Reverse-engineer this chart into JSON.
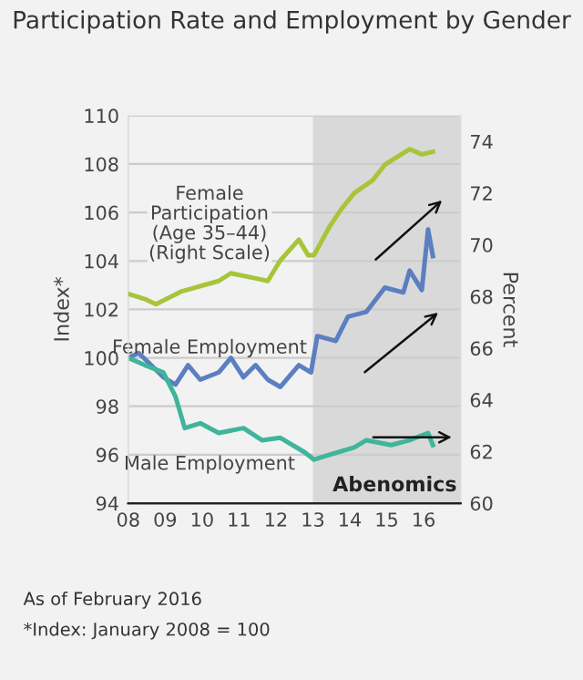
{
  "chart_data": {
    "type": "line",
    "title": "Participation Rate and Employment by Gender",
    "ylabel": "Index*",
    "y2label": "Percent",
    "xlim": [
      2008,
      2017
    ],
    "xticks": [
      {
        "value": 2008,
        "label": "08"
      },
      {
        "value": 2009,
        "label": "09"
      },
      {
        "value": 2010,
        "label": "10"
      },
      {
        "value": 2011,
        "label": "11"
      },
      {
        "value": 2012,
        "label": "12"
      },
      {
        "value": 2013,
        "label": "13"
      },
      {
        "value": 2014,
        "label": "14"
      },
      {
        "value": 2015,
        "label": "15"
      },
      {
        "value": 2016,
        "label": "16"
      }
    ],
    "ylim": [
      94,
      110
    ],
    "yticks": [
      94,
      96,
      98,
      100,
      102,
      104,
      106,
      108,
      110
    ],
    "y2lim": [
      60,
      75
    ],
    "y2ticks": [
      60,
      62,
      64,
      66,
      68,
      70,
      72,
      74
    ],
    "grid": "y",
    "legend": false,
    "marker": "none",
    "line_style": "solid",
    "bands": [
      {
        "axis": "x",
        "from": 2013,
        "to": 2017,
        "label": "Abenomics",
        "color": "#d9d9d9"
      }
    ],
    "series": [
      {
        "name": "Female Participation (Age 35–44) (Right Scale)",
        "color": "#a8c43a",
        "axis": "y2",
        "x": [
          2008,
          2008.45,
          2008.75,
          2009.45,
          2010.45,
          2010.78,
          2011.45,
          2011.78,
          2012.12,
          2012.62,
          2012.87,
          2013.03,
          2013.45,
          2013.78,
          2014.12,
          2014.62,
          2014.95,
          2015.62,
          2015.95,
          2016.25
        ],
        "values": [
          68.1,
          67.9,
          67.7,
          68.2,
          68.6,
          68.9,
          68.7,
          68.6,
          69.4,
          70.2,
          69.6,
          69.6,
          70.7,
          71.4,
          72.0,
          72.5,
          73.1,
          73.7,
          73.5,
          73.6
        ]
      },
      {
        "name": "Female Employment",
        "color": "#5b7fc0",
        "x": [
          2008,
          2008.28,
          2008.62,
          2008.95,
          2009.28,
          2009.62,
          2009.95,
          2010.45,
          2010.78,
          2011.12,
          2011.45,
          2011.78,
          2012.12,
          2012.62,
          2012.95,
          2013.12,
          2013.62,
          2013.95,
          2014.45,
          2014.95,
          2015.45,
          2015.62,
          2015.95,
          2016.12,
          2016.25
        ],
        "values": [
          100.0,
          100.2,
          99.7,
          99.2,
          98.9,
          99.7,
          99.1,
          99.4,
          100.0,
          99.2,
          99.7,
          99.1,
          98.8,
          99.7,
          99.4,
          100.9,
          100.7,
          101.7,
          101.9,
          102.9,
          102.7,
          103.6,
          102.8,
          105.3,
          104.2
        ]
      },
      {
        "name": "Male Employment",
        "color": "#3fb59b",
        "x": [
          2008,
          2008.45,
          2008.95,
          2009.28,
          2009.53,
          2009.95,
          2010.45,
          2011.12,
          2011.62,
          2012.12,
          2012.78,
          2013.03,
          2013.45,
          2014.12,
          2014.45,
          2015.12,
          2015.62,
          2016.12,
          2016.25
        ],
        "values": [
          100.0,
          99.7,
          99.4,
          98.4,
          97.1,
          97.3,
          96.9,
          97.1,
          96.6,
          96.7,
          96.1,
          95.8,
          96.0,
          96.3,
          96.6,
          96.4,
          96.6,
          96.9,
          96.4
        ]
      }
    ],
    "annotations": [
      "As of February 2016",
      "*Index: January 2008 = 100"
    ]
  }
}
